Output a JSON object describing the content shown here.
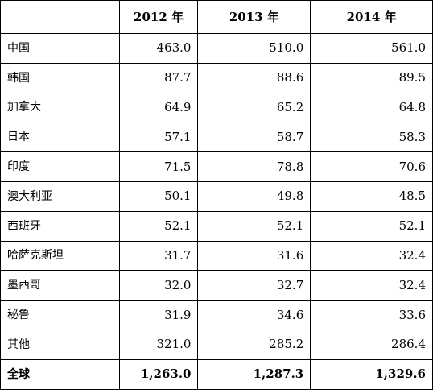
{
  "table": {
    "header": [
      "",
      "2012 年",
      "2013 年",
      "2014 年"
    ],
    "rows": [
      {
        "name": "中国",
        "values": [
          "463.0",
          "510.0",
          "561.0"
        ]
      },
      {
        "name": "韩国",
        "values": [
          "87.7",
          "88.6",
          "89.5"
        ]
      },
      {
        "name": "加拿大",
        "values": [
          "64.9",
          "65.2",
          "64.8"
        ]
      },
      {
        "name": "日本",
        "values": [
          "57.1",
          "58.7",
          "58.3"
        ]
      },
      {
        "name": "印度",
        "values": [
          "71.5",
          "78.8",
          "70.6"
        ]
      },
      {
        "name": "澳大利亚",
        "values": [
          "50.1",
          "49.8",
          "48.5"
        ]
      },
      {
        "name": "西班牙",
        "values": [
          "52.1",
          "52.1",
          "52.1"
        ]
      },
      {
        "name": "哈萨克斯坦",
        "values": [
          "31.7",
          "31.6",
          "32.4"
        ]
      },
      {
        "name": "墨西哥",
        "values": [
          "32.0",
          "32.7",
          "32.4"
        ]
      },
      {
        "name": "秘鲁",
        "values": [
          "31.9",
          "34.6",
          "33.6"
        ]
      },
      {
        "name": "其他",
        "values": [
          "321.0",
          "285.2",
          "286.4"
        ]
      }
    ],
    "total": {
      "name": "全球",
      "values": [
        "1,263.0",
        "1,287.3",
        "1,329.6"
      ]
    }
  }
}
